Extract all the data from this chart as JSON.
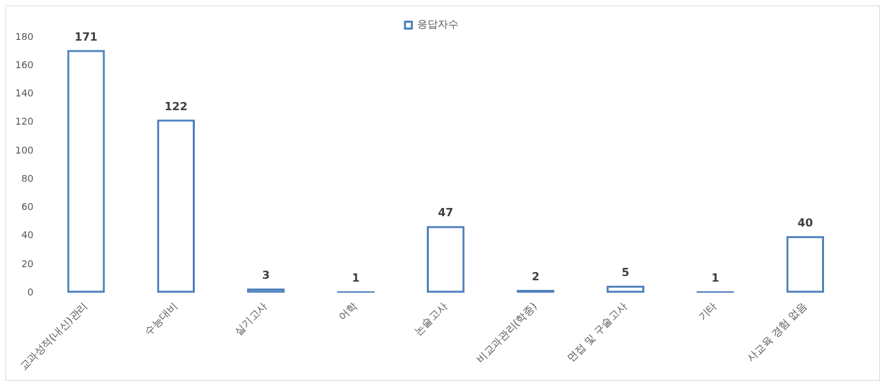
{
  "chart_data": {
    "type": "bar",
    "categories": [
      "교과성적(내신)관리",
      "수능대비",
      "실기고사",
      "어학",
      "논술고사",
      "비교과관리(학종)",
      "면접 및 구술고사",
      "기타",
      "사교육 경험 없음"
    ],
    "series": [
      {
        "name": "응답자수",
        "color": "#4f81bd",
        "values": [
          171,
          122,
          3,
          1,
          47,
          2,
          5,
          1,
          40
        ]
      }
    ],
    "ylim": [
      0,
      180
    ],
    "yticks": [
      0,
      20,
      40,
      60,
      80,
      100,
      120,
      140,
      160,
      180
    ],
    "grid": false,
    "legend": "top",
    "data_labels": true
  }
}
